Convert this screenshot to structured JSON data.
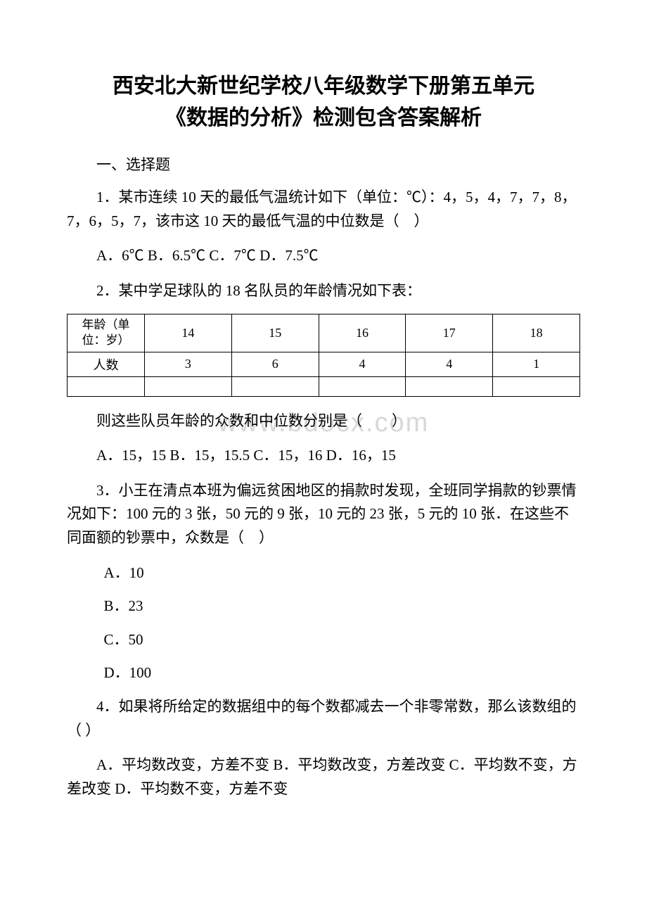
{
  "title_line1": "西安北大新世纪学校八年级数学下册第五单元",
  "title_line2": "《数据的分析》检测包含答案解析",
  "section_header": "一、选择题",
  "q1": {
    "text": "1．某市连续 10 天的最低气温统计如下（单位：℃）：4，5，4，7，7，8，7，6，5，7，该市这 10 天的最低气温的中位数是（　）",
    "options": "A．6℃ B．6.5℃ C．7℃ D．7.5℃"
  },
  "q2": {
    "text": "2．某中学足球队的 18 名队员的年龄情况如下表：",
    "table": {
      "header_label": "年龄（单位：岁）",
      "ages": [
        "14",
        "15",
        "16",
        "17",
        "18"
      ],
      "count_label": "人数",
      "counts": [
        "3",
        "6",
        "4",
        "4",
        "1"
      ]
    },
    "followup": "则这些队员年龄的众数和中位数分别是（　　）",
    "options": "A．15，15 B．15，15.5 C．15，16 D．16，15"
  },
  "q3": {
    "text": "3．小王在清点本班为偏远贫困地区的捐款时发现，全班同学捐款的钞票情况如下：100 元的 3 张，50 元的 9 张，10 元的 23 张，5 元的 10 张．在这些不同面额的钞票中，众数是（　）",
    "opt_a": "A．10",
    "opt_b": "B．23",
    "opt_c": "C．50",
    "opt_d": "D．100"
  },
  "q4": {
    "text": "4．如果将所给定的数据组中的每个数都减去一个非零常数，那么该数组的 （ ）",
    "options": "A．平均数改变，方差不变 B．平均数改变，方差改变 C．平均数不变，方差改变 D．平均数不变，方差不变"
  },
  "watermark": "www.bdocx.com"
}
